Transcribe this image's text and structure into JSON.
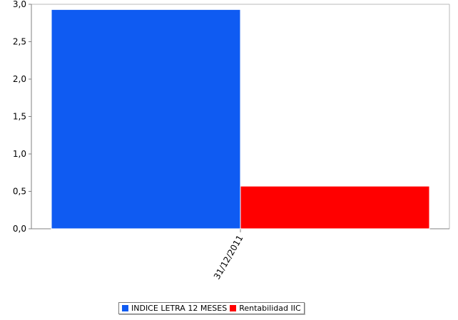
{
  "chart_data": {
    "type": "bar",
    "categories": [
      "31/12/2011"
    ],
    "series": [
      {
        "name": "INDICE LETRA 12 MESES",
        "values": [
          2.93
        ],
        "color": "#0F5BF2"
      },
      {
        "name": "Rentabilidad IIC",
        "values": [
          0.57
        ],
        "color": "#FF0000"
      }
    ],
    "ylim": [
      0,
      3.0
    ],
    "yticks": [
      "0,0",
      "0,5",
      "1,0",
      "1,5",
      "2,0",
      "2,5",
      "3,0"
    ],
    "grid": false,
    "legend_position": "bottom",
    "title": "",
    "xlabel": "",
    "ylabel": ""
  }
}
